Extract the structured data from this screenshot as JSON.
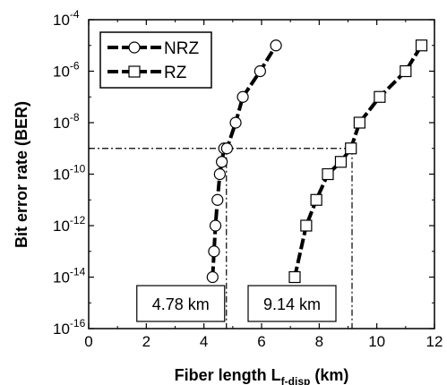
{
  "chart_data": {
    "type": "line",
    "xlabel": "Fiber length",
    "xlabel_sym": "L",
    "xlabel_sub": "f-disp",
    "xlabel_unit": "(km)",
    "ylabel": "Bit error rate (BER)",
    "xlim": [
      0,
      12
    ],
    "ylim_log10": [
      -16,
      -4
    ],
    "log_y": true,
    "x_ticks": [
      0,
      2,
      4,
      6,
      8,
      10,
      12
    ],
    "x_tick_labels": [
      "0",
      "2",
      "4",
      "6",
      "8",
      "10",
      "12"
    ],
    "y_ticks_log10": [
      -16,
      -14,
      -12,
      -10,
      -8,
      -6,
      -4
    ],
    "y_tick_base": "10",
    "y_tick_exps": [
      "-16",
      "-14",
      "-12",
      "-10",
      "-8",
      "-6",
      "-4"
    ],
    "legend_position": "top-left",
    "series": [
      {
        "name": "NRZ",
        "marker": "circle",
        "x": [
          4.3,
          4.35,
          4.4,
          4.47,
          4.55,
          4.62,
          4.7,
          4.8,
          5.1,
          5.35,
          5.95,
          6.5
        ],
        "y": [
          "1e-14",
          "1e-13",
          "1e-12",
          "1e-11",
          "1e-10",
          "3e-10",
          "1e-9",
          "1e-9",
          "1e-8",
          "1e-7",
          "1e-6",
          "1e-5"
        ]
      },
      {
        "name": "RZ",
        "marker": "square",
        "x": [
          7.15,
          7.55,
          7.9,
          8.3,
          8.75,
          9.1,
          9.4,
          10.1,
          11.0,
          11.55
        ],
        "y": [
          "1e-14",
          "1e-12",
          "1e-11",
          "1e-10",
          "3e-10",
          "1e-9",
          "1e-8",
          "1e-7",
          "1e-6",
          "1e-5"
        ]
      }
    ],
    "threshold_ber": "1e-9",
    "annotations": [
      {
        "text": "4.78 km",
        "x": 4.78
      },
      {
        "text": "9.14 km",
        "x": 9.14
      }
    ]
  }
}
